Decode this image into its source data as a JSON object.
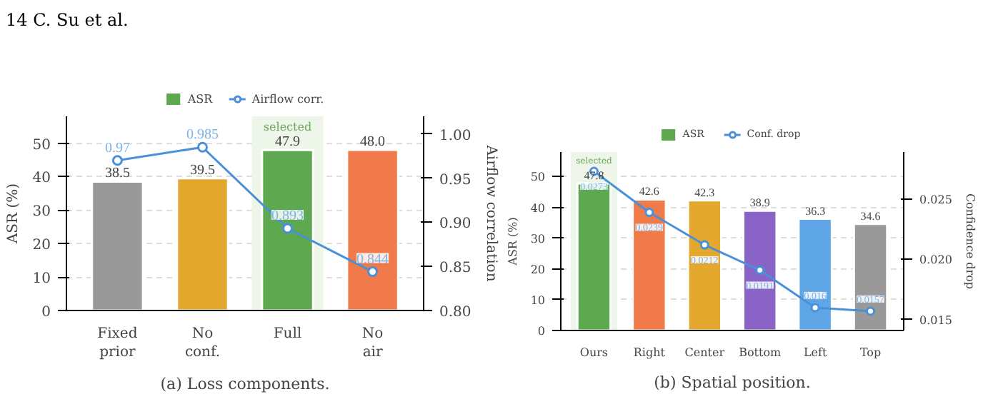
{
  "chart_data": [
    {
      "type": "bar",
      "xlabel": null,
      "ylabel": "ASR (%)",
      "y2label": "Airflow correlation",
      "annotations": [
        "14 C. Su et al.",
        "(a) Loss components."
      ],
      "categories": [
        "Fixed\nprior",
        "No\nconf.",
        "Full",
        "No\nair"
      ],
      "series": [
        {
          "name": "ASR",
          "color": "#5ea84f",
          "colors": [
            "#999999",
            "#e5a82e",
            "#5ea84f",
            "#f07a4a"
          ],
          "values": [
            38.5,
            39.5,
            47.9,
            48.0
          ],
          "value_labels": [
            "38.5",
            "39.5",
            "47.9",
            "48.0"
          ]
        },
        {
          "name": "Airflow corr.",
          "type": "line",
          "axis": "y2",
          "color": "#4a90d9",
          "values": [
            0.97,
            0.985,
            0.893,
            0.844
          ]
        }
      ],
      "ylim": [
        0,
        58
      ],
      "yticks": [
        0,
        10,
        20,
        30,
        40,
        50
      ],
      "y2lim": [
        0.8,
        1.02
      ],
      "y2ticks": [
        {
          "value": 0.8,
          "label": "0.80"
        },
        0.85,
        {
          "value": 0.9,
          "label": "0.90"
        },
        0.95,
        {
          "value": 1.0,
          "label": "1.00"
        }
      ],
      "bands": [
        {
          "axis": "x",
          "from": "Full",
          "to": "Full",
          "label": "selected",
          "color": "#eef6ea"
        }
      ],
      "data_labels": true,
      "grid": "y",
      "legend": "top",
      "marker": "circle",
      "line_style": "solid"
    },
    {
      "type": "bar",
      "ylabel": "ASR (%)",
      "y2label": "Confidence drop",
      "annotations": [
        "(b) Spatial position."
      ],
      "categories": [
        "Ours",
        "Right",
        "Center",
        "Bottom",
        "Left",
        "Top"
      ],
      "series": [
        {
          "name": "ASR",
          "color": "#5ea84f",
          "colors": [
            "#5ea84f",
            "#f07a4a",
            "#e5a82e",
            "#8a63c6",
            "#5ea6e6",
            "#999999"
          ],
          "values": [
            47.8,
            42.6,
            42.3,
            38.9,
            36.3,
            34.6
          ]
        },
        {
          "name": "Conf. drop",
          "type": "line",
          "axis": "y2",
          "color": "#4a90d9",
          "values": [
            0.0273,
            0.0239,
            0.0212,
            0.0191,
            0.016,
            0.0157
          ]
        }
      ],
      "ylim": [
        0,
        58
      ],
      "yticks": [
        0,
        10,
        20,
        30,
        40,
        50
      ],
      "y2lim": [
        0.0141,
        0.0289
      ],
      "y2ticks": [
        0.015,
        {
          "value": 0.02,
          "label": "0.020"
        },
        0.025
      ],
      "bands": [
        {
          "axis": "x",
          "from": "Ours",
          "to": "Ours",
          "label": "selected",
          "color": "#eef6ea"
        }
      ],
      "data_labels": true,
      "grid": "y",
      "legend": "top",
      "marker": "circle",
      "line_style": "solid"
    }
  ]
}
